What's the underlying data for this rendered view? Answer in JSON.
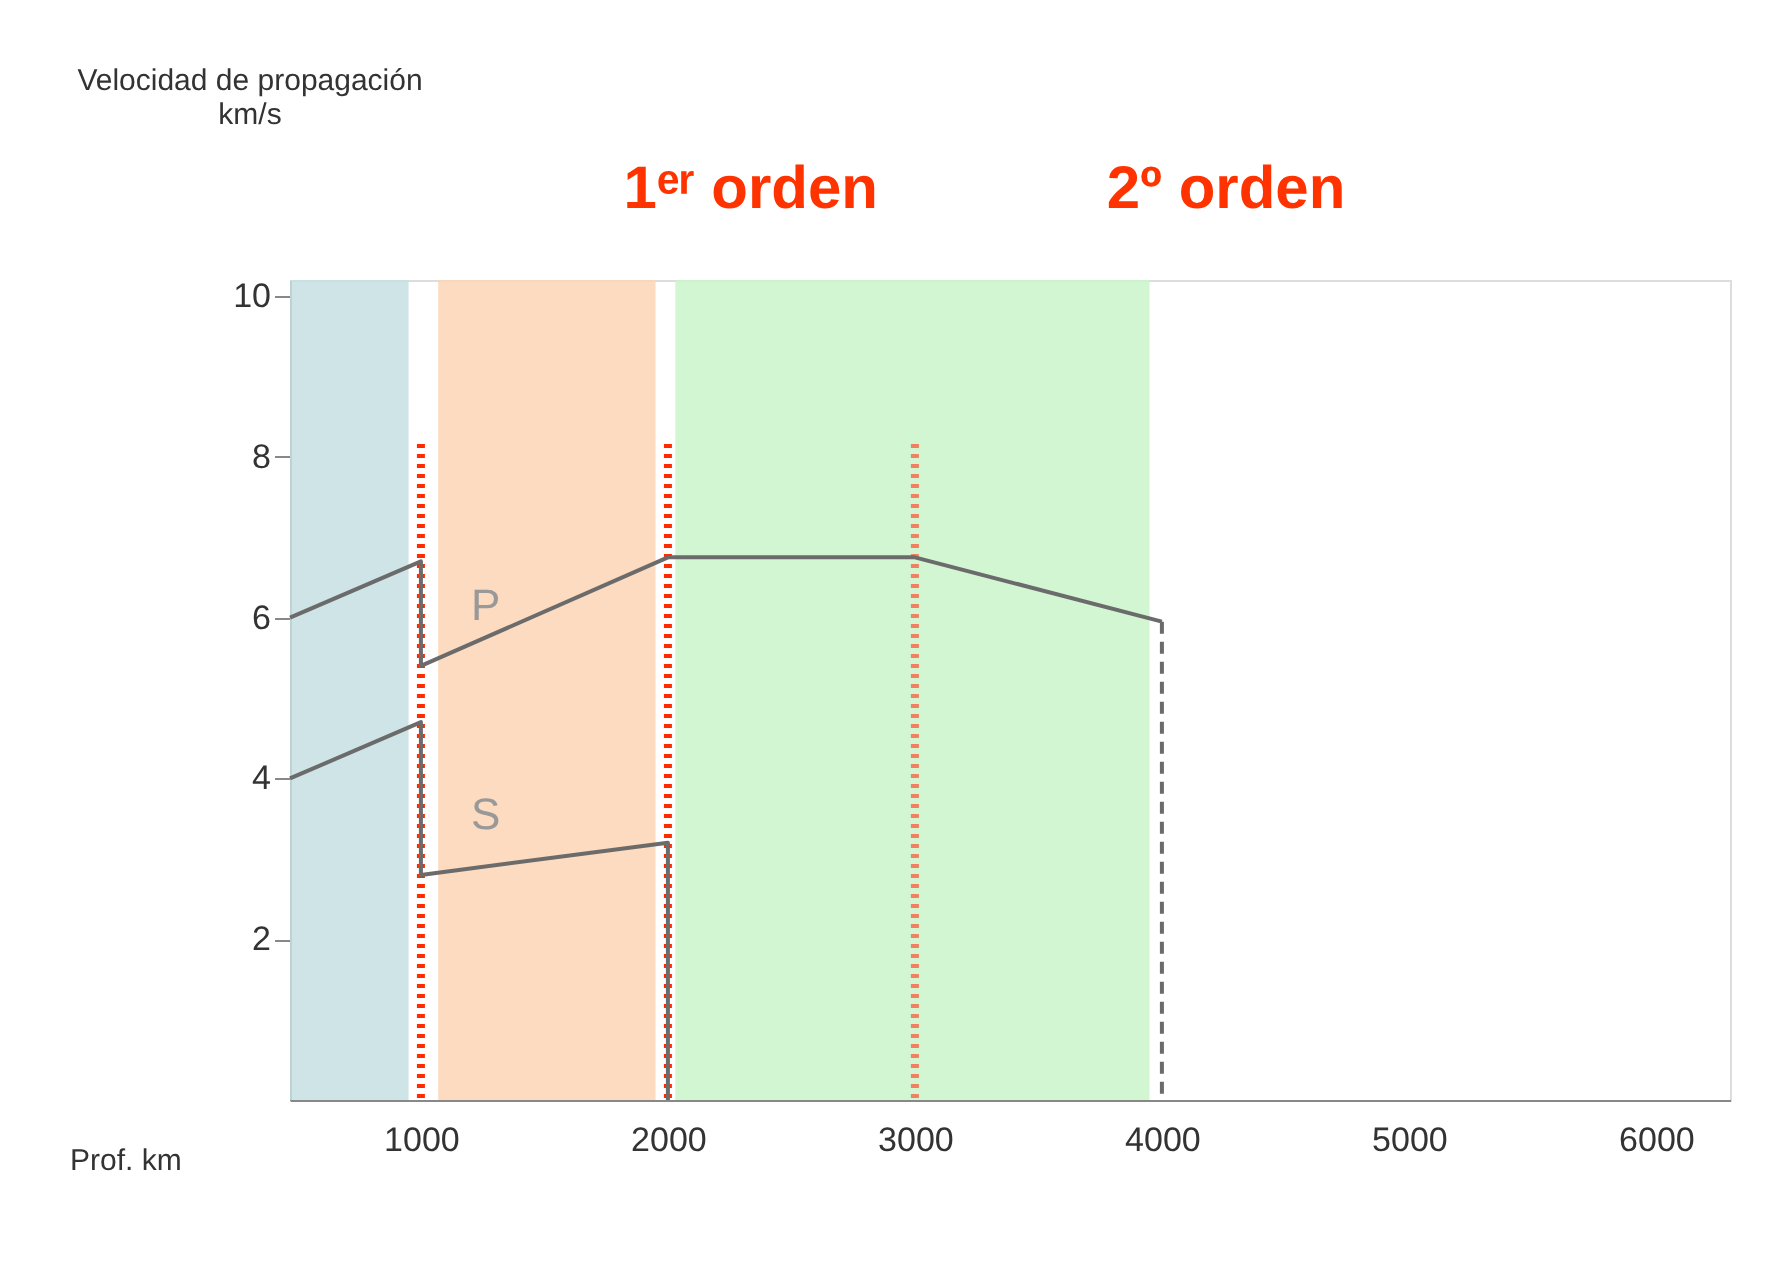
{
  "chart_data": {
    "type": "line",
    "ylabel": "Velocidad de propagación\nkm/s",
    "xlabel": "Prof. km",
    "xlim": [
      470,
      6300
    ],
    "ylim": [
      0,
      10.2
    ],
    "xticks": [
      1000,
      2000,
      3000,
      4000,
      5000,
      6000
    ],
    "yticks": [
      2,
      4,
      6,
      8,
      10
    ],
    "grid": false,
    "series": [
      {
        "name": "P",
        "color": "#6b6b6b",
        "x": [
          470,
          1000,
          1000,
          2000,
          3000,
          4000
        ],
        "values": [
          6.0,
          6.7,
          5.4,
          6.75,
          6.75,
          5.95
        ]
      },
      {
        "name": "S",
        "color": "#6b6b6b",
        "x": [
          470,
          1000,
          1000,
          2000,
          2000
        ],
        "values": [
          4.0,
          4.7,
          2.8,
          3.2,
          0
        ]
      },
      {
        "color": "#6b6b6b",
        "line_style": "dashed",
        "x": [
          4000,
          4000
        ],
        "values": [
          5.95,
          0
        ]
      }
    ],
    "bands": [
      {
        "axis": "x",
        "from": 470,
        "to": 950,
        "color": "#c5dfe3"
      },
      {
        "axis": "x",
        "from": 1070,
        "to": 1950,
        "color": "#fbd5b5"
      },
      {
        "axis": "x",
        "from": 2030,
        "to": 3950,
        "color": "#c9f5c9"
      }
    ],
    "ref_lines": [
      {
        "axis": "x",
        "value": 1000,
        "color": "#ff2a00",
        "line_style": "dotted"
      },
      {
        "axis": "x",
        "value": 2000,
        "color": "#ff2a00",
        "line_style": "dotted"
      },
      {
        "axis": "x",
        "value": 3000,
        "color": "#f08060",
        "line_style": "dotted"
      }
    ],
    "annotations": [
      "1ᵉʳ orden",
      "2º orden"
    ]
  }
}
